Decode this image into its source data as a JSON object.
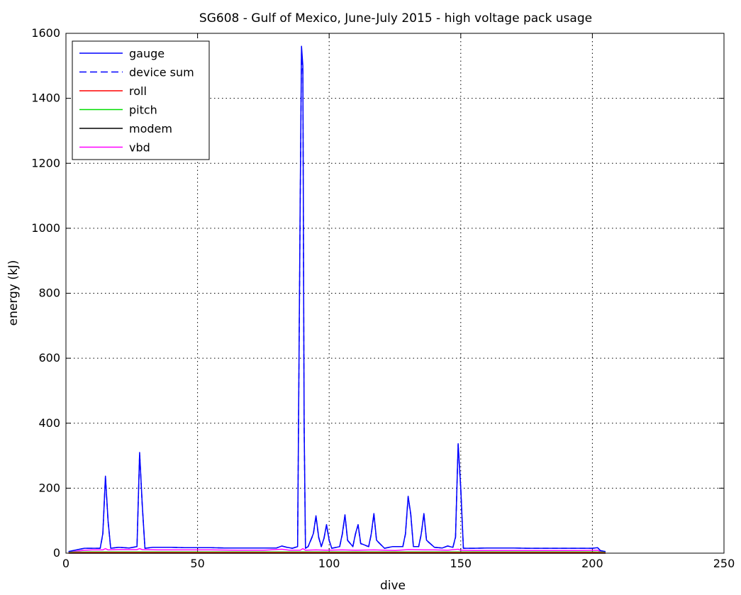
{
  "chart_data": {
    "type": "line",
    "title": "SG608 - Gulf of Mexico, June-July 2015 - high voltage pack usage",
    "xlabel": "dive",
    "ylabel": "energy (kJ)",
    "xlim": [
      0,
      250
    ],
    "ylim": [
      0,
      1600
    ],
    "xticks": [
      0,
      50,
      100,
      150,
      200,
      250
    ],
    "yticks": [
      0,
      200,
      400,
      600,
      800,
      1000,
      1200,
      1400,
      1600
    ],
    "grid": true,
    "legend_position": "top-left",
    "series": [
      {
        "name": "gauge",
        "color": "#0000ff",
        "dash": "solid",
        "x": [
          1,
          4,
          7,
          10,
          13,
          14,
          15,
          16,
          17,
          20,
          24,
          27,
          28,
          29,
          30,
          33,
          40,
          45,
          50,
          55,
          60,
          65,
          70,
          75,
          80,
          82,
          84,
          86,
          88,
          89,
          89.5,
          90,
          90.5,
          91,
          92,
          94,
          95,
          96,
          97,
          98,
          99,
          100,
          101,
          104,
          105,
          106,
          107,
          109,
          110,
          111,
          112,
          115,
          116,
          117,
          118,
          121,
          124,
          128,
          129,
          130,
          131,
          132,
          134,
          135,
          136,
          137,
          140,
          143,
          145,
          147,
          148,
          149,
          150,
          151,
          155,
          160,
          165,
          170,
          175,
          180,
          185,
          190,
          195,
          200,
          202,
          203,
          205
        ],
        "y": [
          5,
          10,
          15,
          15,
          15,
          60,
          237,
          100,
          15,
          18,
          16,
          20,
          310,
          150,
          15,
          18,
          18,
          17,
          17,
          17,
          16,
          16,
          16,
          16,
          16,
          22,
          18,
          15,
          20,
          1100,
          1560,
          1500,
          400,
          15,
          20,
          60,
          115,
          50,
          20,
          45,
          88,
          40,
          15,
          20,
          60,
          118,
          40,
          20,
          60,
          88,
          30,
          20,
          60,
          122,
          40,
          15,
          20,
          20,
          60,
          175,
          120,
          20,
          20,
          60,
          122,
          40,
          18,
          16,
          22,
          18,
          50,
          337,
          200,
          15,
          15,
          16,
          16,
          16,
          15,
          15,
          15,
          15,
          15,
          15,
          17,
          8,
          5
        ]
      },
      {
        "name": "device sum",
        "color": "#0000ff",
        "dash": "dashed",
        "x": [
          1,
          4,
          7,
          10,
          13,
          14,
          15,
          16,
          17,
          20,
          24,
          27,
          28,
          29,
          30,
          33,
          40,
          45,
          50,
          55,
          60,
          65,
          70,
          75,
          80,
          82,
          84,
          86,
          88,
          89,
          89.5,
          90,
          90.5,
          91,
          92,
          94,
          95,
          96,
          97,
          98,
          99,
          100,
          101,
          104,
          105,
          106,
          107,
          109,
          110,
          111,
          112,
          115,
          116,
          117,
          118,
          121,
          124,
          128,
          129,
          130,
          131,
          132,
          134,
          135,
          136,
          137,
          140,
          143,
          145,
          147,
          148,
          149,
          150,
          151,
          155,
          160,
          165,
          170,
          175,
          180,
          185,
          190,
          195,
          200,
          202,
          203,
          205
        ],
        "y": [
          5,
          10,
          15,
          15,
          15,
          58,
          233,
          98,
          15,
          18,
          16,
          20,
          306,
          148,
          15,
          18,
          18,
          17,
          17,
          17,
          16,
          16,
          16,
          16,
          16,
          22,
          18,
          15,
          20,
          1080,
          1540,
          1480,
          390,
          15,
          20,
          58,
          113,
          48,
          20,
          44,
          86,
          39,
          15,
          20,
          58,
          116,
          39,
          20,
          58,
          86,
          29,
          20,
          58,
          120,
          39,
          15,
          20,
          20,
          58,
          172,
          118,
          20,
          20,
          58,
          120,
          39,
          18,
          16,
          22,
          18,
          48,
          333,
          196,
          15,
          15,
          16,
          16,
          16,
          15,
          15,
          15,
          15,
          15,
          15,
          17,
          8,
          5
        ]
      },
      {
        "name": "roll",
        "color": "#ff0000",
        "dash": "solid",
        "x": [
          1,
          10,
          20,
          30,
          40,
          50,
          60,
          70,
          80,
          90,
          100,
          110,
          120,
          130,
          140,
          150,
          160,
          170,
          180,
          190,
          200,
          205
        ],
        "y": [
          1,
          2,
          2,
          2,
          2,
          2,
          2,
          2,
          2,
          2,
          2,
          2,
          2,
          2,
          2,
          2,
          2,
          2,
          2,
          2,
          2,
          1
        ]
      },
      {
        "name": "pitch",
        "color": "#00dd00",
        "dash": "solid",
        "x": [
          1,
          10,
          20,
          30,
          40,
          50,
          60,
          70,
          80,
          90,
          100,
          110,
          120,
          130,
          140,
          150,
          160,
          170,
          180,
          190,
          200,
          205
        ],
        "y": [
          3,
          4,
          4,
          4,
          4,
          4,
          4,
          4,
          4,
          4,
          4,
          4,
          4,
          4,
          4,
          4,
          4,
          4,
          4,
          4,
          4,
          3
        ]
      },
      {
        "name": "modem",
        "color": "#000000",
        "dash": "solid",
        "x": [
          1,
          205
        ],
        "y": [
          0,
          0
        ]
      },
      {
        "name": "vbd",
        "color": "#ff00ff",
        "dash": "solid",
        "x": [
          1,
          4,
          7,
          10,
          14,
          15,
          16,
          20,
          27,
          28,
          29,
          35,
          45,
          55,
          65,
          75,
          82,
          85,
          89,
          90,
          91,
          95,
          99,
          105,
          110,
          117,
          125,
          130,
          136,
          140,
          145,
          149,
          150,
          155,
          165,
          175,
          185,
          195,
          202,
          203,
          205
        ],
        "y": [
          3,
          6,
          9,
          10,
          10,
          14,
          10,
          11,
          11,
          14,
          11,
          10,
          10,
          10,
          9,
          9,
          12,
          9,
          9,
          14,
          9,
          10,
          9,
          10,
          9,
          10,
          8,
          11,
          10,
          10,
          9,
          12,
          9,
          8,
          8,
          8,
          8,
          8,
          9,
          5,
          4
        ]
      }
    ]
  }
}
